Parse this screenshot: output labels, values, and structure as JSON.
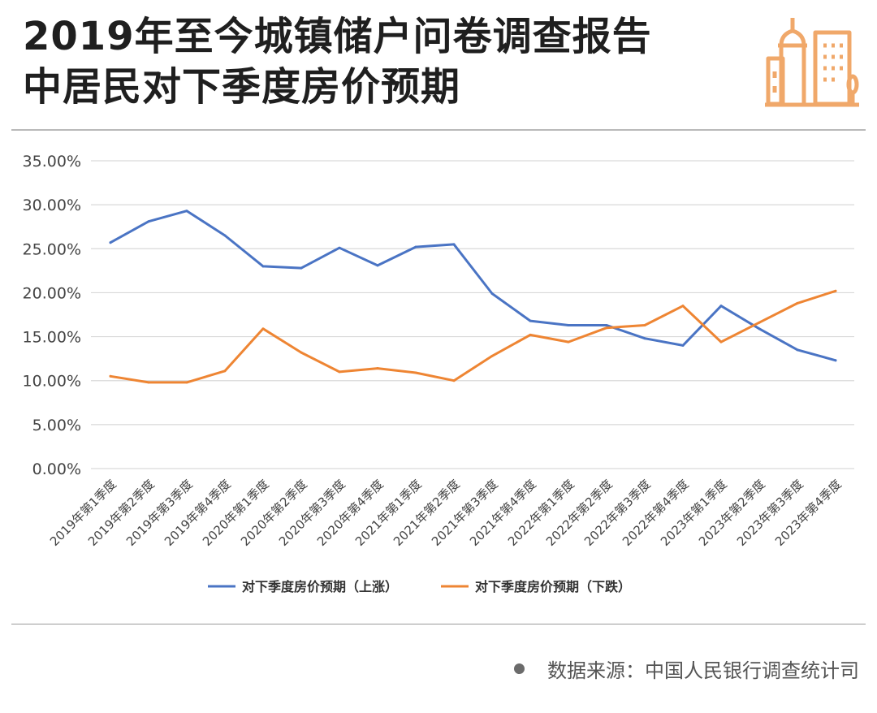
{
  "header": {
    "title_line1": "2019年至今城镇储户问卷调查报告",
    "title_line2": "中居民对下季度房价预期",
    "icon": "city-buildings-icon",
    "accent_color": "#f0a86a"
  },
  "footer": {
    "source": "数据来源：中国人民银行调查统计司"
  },
  "chart_data": {
    "type": "line",
    "title": "",
    "xlabel": "",
    "ylabel": "",
    "ylim": [
      0,
      35
    ],
    "yticks": [
      "0.00%",
      "5.00%",
      "10.00%",
      "15.00%",
      "20.00%",
      "25.00%",
      "30.00%",
      "35.00%"
    ],
    "grid": true,
    "legend_position": "bottom",
    "categories": [
      "2019年第1季度",
      "2019年第2季度",
      "2019年第3季度",
      "2019年第4季度",
      "2020年第1季度",
      "2020年第2季度",
      "2020年第3季度",
      "2020年第4季度",
      "2021年第1季度",
      "2021年第2季度",
      "2021年第3季度",
      "2021年第4季度",
      "2022年第1季度",
      "2022年第2季度",
      "2022年第3季度",
      "2022年第4季度",
      "2023年第1季度",
      "2023年第2季度",
      "2023年第3季度",
      "2023年第4季度"
    ],
    "series": [
      {
        "name": "对下季度房价预期（上涨）",
        "color": "#4a74c4",
        "values": [
          25.7,
          28.1,
          29.3,
          26.5,
          23.0,
          22.8,
          25.1,
          23.1,
          25.2,
          25.5,
          19.9,
          16.8,
          16.3,
          16.3,
          14.8,
          14.0,
          18.5,
          15.9,
          13.5,
          12.3
        ]
      },
      {
        "name": "对下季度房价预期（下跌）",
        "color": "#ee8533",
        "values": [
          10.5,
          9.8,
          9.8,
          11.1,
          15.9,
          13.2,
          11.0,
          11.4,
          10.9,
          10.0,
          12.8,
          15.2,
          14.4,
          16.0,
          16.3,
          18.5,
          14.4,
          16.6,
          18.8,
          20.2
        ]
      }
    ]
  }
}
